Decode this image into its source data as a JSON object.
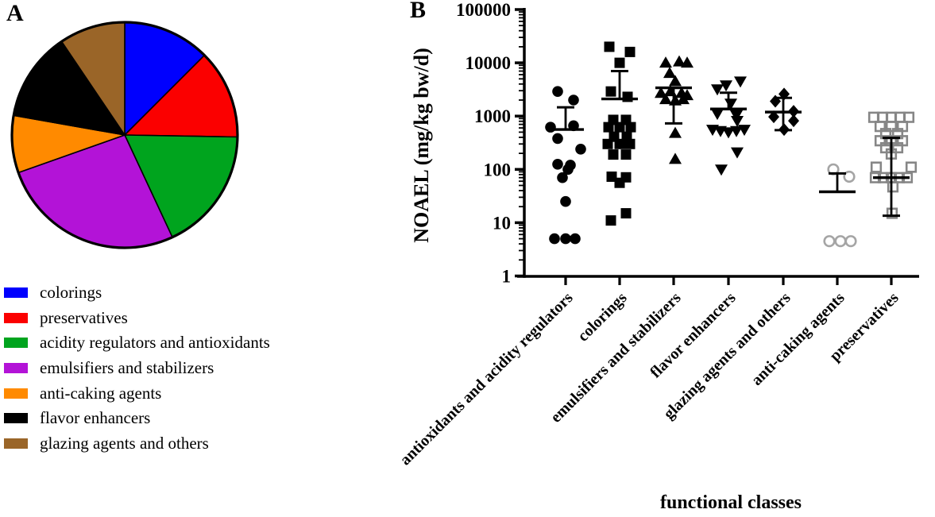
{
  "panel_a": {
    "label": "A",
    "legend": [
      {
        "label": "colorings",
        "color": "#0000FE"
      },
      {
        "label": "preservatives",
        "color": "#FB0000"
      },
      {
        "label": "acidity regulators and antioxidants",
        "color": "#00A41E"
      },
      {
        "label": "emulsifiers and stabilizers",
        "color": "#B313D7"
      },
      {
        "label": "anti-caking agents",
        "color": "#FF8A00"
      },
      {
        "label": "flavor enhancers",
        "color": "#000000"
      },
      {
        "label": "glazing agents and others",
        "color": "#9A6528"
      }
    ]
  },
  "panel_b": {
    "label": "B",
    "y_axis_title": "NOAEL (mg/kg bw/d)",
    "x_axis_title": "functional classes"
  },
  "chart_data": [
    {
      "type": "pie",
      "title": "",
      "slices": [
        {
          "label": "colorings",
          "color": "#0000FE",
          "degrees": 45,
          "percent": 12.5
        },
        {
          "label": "preservatives",
          "color": "#FB0000",
          "degrees": 46,
          "percent": 12.8
        },
        {
          "label": "acidity regulators and antioxidants",
          "color": "#00A41E",
          "degrees": 64,
          "percent": 17.8
        },
        {
          "label": "emulsifiers and stabilizers",
          "color": "#B313D7",
          "degrees": 95.5,
          "percent": 26.5
        },
        {
          "label": "anti-caking agents",
          "color": "#FF8A00",
          "degrees": 29.5,
          "percent": 8.2
        },
        {
          "label": "flavor enhancers",
          "color": "#000000",
          "degrees": 46,
          "percent": 12.8
        },
        {
          "label": "glazing agents and others",
          "color": "#9A6528",
          "degrees": 34,
          "percent": 9.4
        }
      ]
    },
    {
      "type": "scatter",
      "title": "",
      "xlabel": "functional classes",
      "ylabel": "NOAEL (mg/kg bw/d)",
      "y_scale": "log",
      "ylim": [
        1,
        100000
      ],
      "y_ticks": [
        {
          "value": 1,
          "label": "1"
        },
        {
          "value": 10,
          "label": "10"
        },
        {
          "value": 100,
          "label": "100"
        },
        {
          "value": 1000,
          "label": "1000"
        },
        {
          "value": 10000,
          "label": "10000"
        },
        {
          "value": 100000,
          "label": "100000"
        }
      ],
      "categories": [
        "antioxidants and acidity regulators",
        "colorings",
        "emulsifiers and stabilizers",
        "flavor enhancers",
        "glazing agents and others",
        "anti-caking agents",
        "preservatives"
      ],
      "series": [
        {
          "category": "antioxidants and acidity regulators",
          "marker": "filled-circle",
          "color": "#000000",
          "mean": 560,
          "whisker_up": 1460,
          "whisker_down": null,
          "points": [
            {
              "v": 2900,
              "dx": -10
            },
            {
              "v": 2000,
              "dx": 10
            },
            {
              "v": 660,
              "dx": 10
            },
            {
              "v": 620,
              "dx": -19
            },
            {
              "v": 380,
              "dx": -10
            },
            {
              "v": 240,
              "dx": 19
            },
            {
              "v": 125,
              "dx": -10
            },
            {
              "v": 120,
              "dx": 6
            },
            {
              "v": 100,
              "dx": 3
            },
            {
              "v": 70,
              "dx": -4
            },
            {
              "v": 25,
              "dx": 0
            },
            {
              "v": 5,
              "dx": -14
            },
            {
              "v": 5,
              "dx": 0
            },
            {
              "v": 5,
              "dx": 12
            }
          ]
        },
        {
          "category": "colorings",
          "marker": "filled-square",
          "color": "#000000",
          "mean": 2100,
          "whisker_up": 7000,
          "whisker_down": null,
          "points": [
            {
              "v": 20000,
              "dx": -13
            },
            {
              "v": 16000,
              "dx": 13
            },
            {
              "v": 10000,
              "dx": 0
            },
            {
              "v": 2900,
              "dx": -11
            },
            {
              "v": 2300,
              "dx": 10
            },
            {
              "v": 850,
              "dx": -8
            },
            {
              "v": 850,
              "dx": 8
            },
            {
              "v": 620,
              "dx": -14
            },
            {
              "v": 620,
              "dx": 0
            },
            {
              "v": 620,
              "dx": 14
            },
            {
              "v": 410,
              "dx": -7
            },
            {
              "v": 410,
              "dx": 9
            },
            {
              "v": 300,
              "dx": -15
            },
            {
              "v": 300,
              "dx": 0
            },
            {
              "v": 300,
              "dx": 13
            },
            {
              "v": 190,
              "dx": -8
            },
            {
              "v": 190,
              "dx": 8
            },
            {
              "v": 73,
              "dx": -10
            },
            {
              "v": 71,
              "dx": 8
            },
            {
              "v": 56,
              "dx": 0
            },
            {
              "v": 15,
              "dx": 8
            },
            {
              "v": 11,
              "dx": -11
            }
          ]
        },
        {
          "category": "emulsifiers and stabilizers",
          "marker": "filled-triangle-up",
          "color": "#000000",
          "mean": 3400,
          "whisker_up": null,
          "whisker_down": 730,
          "points": [
            {
              "v": 10000,
              "dx": -10
            },
            {
              "v": 10500,
              "dx": 7
            },
            {
              "v": 10000,
              "dx": 17
            },
            {
              "v": 6400,
              "dx": -5
            },
            {
              "v": 4500,
              "dx": 2
            },
            {
              "v": 2900,
              "dx": -4
            },
            {
              "v": 2700,
              "dx": -16
            },
            {
              "v": 2700,
              "dx": 10
            },
            {
              "v": 2450,
              "dx": 17
            },
            {
              "v": 2060,
              "dx": -10
            },
            {
              "v": 1950,
              "dx": 2
            },
            {
              "v": 2060,
              "dx": 12
            },
            {
              "v": 480,
              "dx": 2
            },
            {
              "v": 156,
              "dx": 2
            }
          ]
        },
        {
          "category": "flavor enhancers",
          "marker": "filled-triangle-down",
          "color": "#000000",
          "mean": 1360,
          "whisker_up": 2750,
          "whisker_down": null,
          "points": [
            {
              "v": 4500,
              "dx": 15
            },
            {
              "v": 3800,
              "dx": -3
            },
            {
              "v": 3200,
              "dx": -14
            },
            {
              "v": 1730,
              "dx": 3
            },
            {
              "v": 1110,
              "dx": -14
            },
            {
              "v": 1040,
              "dx": 10
            },
            {
              "v": 820,
              "dx": 11
            },
            {
              "v": 560,
              "dx": -20
            },
            {
              "v": 530,
              "dx": -10
            },
            {
              "v": 500,
              "dx": 0
            },
            {
              "v": 530,
              "dx": 10
            },
            {
              "v": 560,
              "dx": 20
            },
            {
              "v": 210,
              "dx": 11
            },
            {
              "v": 100,
              "dx": -9
            }
          ]
        },
        {
          "category": "glazing agents and others",
          "marker": "filled-diamond",
          "color": "#000000",
          "mean": 1190,
          "whisker_up": 2200,
          "whisker_down": 545,
          "points": [
            {
              "v": 2600,
              "dx": 1
            },
            {
              "v": 1900,
              "dx": -10
            },
            {
              "v": 1230,
              "dx": 13
            },
            {
              "v": 970,
              "dx": -12
            },
            {
              "v": 815,
              "dx": 13
            },
            {
              "v": 560,
              "dx": 1
            }
          ]
        },
        {
          "category": "anti-caking agents",
          "marker": "open-circle",
          "color": "#A5A5A5",
          "mean": 38,
          "whisker_up": 84,
          "whisker_down": null,
          "points": [
            {
              "v": 100,
              "dx": -5
            },
            {
              "v": 73,
              "dx": 15
            },
            {
              "v": 4.5,
              "dx": -10
            },
            {
              "v": 4.5,
              "dx": 4
            },
            {
              "v": 4.5,
              "dx": 17
            }
          ]
        },
        {
          "category": "preservatives",
          "marker": "open-square",
          "color": "#868686",
          "mean": 70,
          "whisker_up": 390,
          "whisker_down": 13.5,
          "points": [
            {
              "v": 950,
              "dx": -22
            },
            {
              "v": 950,
              "dx": -11
            },
            {
              "v": 950,
              "dx": 0
            },
            {
              "v": 950,
              "dx": 11
            },
            {
              "v": 950,
              "dx": 22
            },
            {
              "v": 640,
              "dx": -14
            },
            {
              "v": 640,
              "dx": 0
            },
            {
              "v": 640,
              "dx": 14
            },
            {
              "v": 470,
              "dx": -7
            },
            {
              "v": 470,
              "dx": 8
            },
            {
              "v": 345,
              "dx": -14
            },
            {
              "v": 345,
              "dx": 0
            },
            {
              "v": 345,
              "dx": 14
            },
            {
              "v": 255,
              "dx": -7
            },
            {
              "v": 255,
              "dx": 8
            },
            {
              "v": 195,
              "dx": 0
            },
            {
              "v": 110,
              "dx": -19
            },
            {
              "v": 110,
              "dx": 25
            },
            {
              "v": 70,
              "dx": -20
            },
            {
              "v": 70,
              "dx": -10
            },
            {
              "v": 70,
              "dx": 0
            },
            {
              "v": 70,
              "dx": 10
            },
            {
              "v": 70,
              "dx": 20
            },
            {
              "v": 47,
              "dx": 2
            },
            {
              "v": 15,
              "dx": 1
            }
          ]
        }
      ]
    }
  ]
}
